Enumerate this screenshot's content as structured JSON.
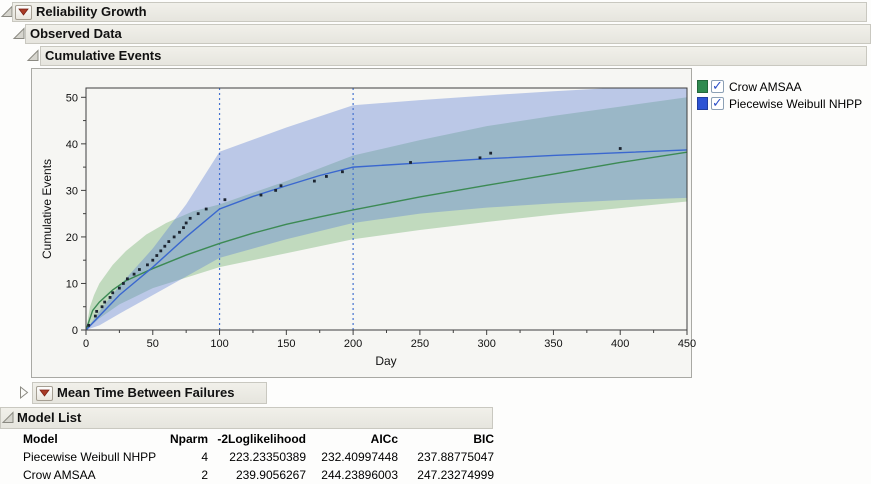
{
  "sections": {
    "reliability_growth": "Reliability Growth",
    "observed_data": "Observed Data",
    "cumulative_events": "Cumulative Events",
    "mtbf": "Mean Time Between Failures",
    "model_list": "Model List"
  },
  "legend": {
    "items": [
      {
        "label": "Crow AMSAA",
        "color": "#2f8a4f",
        "checked": true
      },
      {
        "label": "Piecewise Weibull NHPP",
        "color": "#2d53d4",
        "checked": true
      }
    ],
    "check_glyph": "✓"
  },
  "chart_data": {
    "type": "line",
    "xlabel": "Day",
    "ylabel": "Cumulative Events",
    "xlim": [
      0,
      450
    ],
    "ylim": [
      0,
      52
    ],
    "x_ticks": [
      0,
      50,
      100,
      150,
      200,
      250,
      300,
      350,
      400,
      450
    ],
    "y_ticks": [
      0,
      10,
      20,
      30,
      40,
      50
    ],
    "x_minor_step": 25,
    "y_minor_step": 5,
    "grid": false,
    "legend_position": "right-top",
    "phase_lines_x": [
      100,
      200
    ],
    "phase_line_color": "#4472d0",
    "point_color": "#1c2430",
    "observed_points": [
      [
        2,
        1
      ],
      [
        7,
        3
      ],
      [
        8,
        4
      ],
      [
        12,
        5
      ],
      [
        14,
        6
      ],
      [
        18,
        7
      ],
      [
        20,
        8
      ],
      [
        25,
        9
      ],
      [
        28,
        10
      ],
      [
        31,
        11
      ],
      [
        36,
        12
      ],
      [
        40,
        13
      ],
      [
        46,
        14
      ],
      [
        50,
        15
      ],
      [
        53,
        16
      ],
      [
        56,
        17
      ],
      [
        59,
        18
      ],
      [
        62,
        19
      ],
      [
        66,
        20
      ],
      [
        70,
        21
      ],
      [
        73,
        22
      ],
      [
        75,
        23
      ],
      [
        78,
        24
      ],
      [
        84,
        25
      ],
      [
        90,
        26
      ],
      [
        104,
        28
      ],
      [
        131,
        29
      ],
      [
        142,
        30
      ],
      [
        146,
        31
      ],
      [
        171,
        32
      ],
      [
        180,
        33
      ],
      [
        192,
        34
      ],
      [
        243,
        36
      ],
      [
        295,
        37
      ],
      [
        303,
        38
      ],
      [
        400,
        39
      ]
    ],
    "series": [
      {
        "name": "Crow AMSAA",
        "color": "#3c8a54",
        "band_color": "#6cae68",
        "band_opacity": 0.38,
        "line": [
          [
            0,
            0
          ],
          [
            5,
            4.2
          ],
          [
            10,
            6
          ],
          [
            20,
            8.6
          ],
          [
            30,
            10.6
          ],
          [
            50,
            13.2
          ],
          [
            75,
            16.1
          ],
          [
            100,
            18.6
          ],
          [
            125,
            20.8
          ],
          [
            150,
            22.7
          ],
          [
            175,
            24.3
          ],
          [
            200,
            25.8
          ],
          [
            250,
            28.6
          ],
          [
            300,
            31.1
          ],
          [
            350,
            33.5
          ],
          [
            400,
            36
          ],
          [
            450,
            38.2
          ]
        ],
        "band_upper": [
          [
            0,
            0
          ],
          [
            3,
            5
          ],
          [
            6,
            7.5
          ],
          [
            10,
            10
          ],
          [
            20,
            14
          ],
          [
            30,
            17
          ],
          [
            45,
            20.5
          ],
          [
            60,
            23
          ],
          [
            80,
            25.5
          ],
          [
            100,
            27
          ],
          [
            150,
            32
          ],
          [
            200,
            37.5
          ],
          [
            250,
            40.8
          ],
          [
            300,
            43.8
          ],
          [
            350,
            46
          ],
          [
            400,
            48
          ],
          [
            450,
            50
          ]
        ],
        "band_lower": [
          [
            0,
            0
          ],
          [
            10,
            2.5
          ],
          [
            25,
            5.5
          ],
          [
            50,
            9
          ],
          [
            100,
            13.5
          ],
          [
            150,
            16.5
          ],
          [
            200,
            19.5
          ],
          [
            250,
            21.5
          ],
          [
            300,
            23.2
          ],
          [
            350,
            24.8
          ],
          [
            400,
            26.2
          ],
          [
            450,
            27.6
          ]
        ]
      },
      {
        "name": "Piecewise Weibull NHPP",
        "color": "#3a67cf",
        "band_color": "#5b7fd4",
        "band_opacity": 0.38,
        "line": [
          [
            0,
            0
          ],
          [
            10,
            3
          ],
          [
            25,
            7.5
          ],
          [
            50,
            13.5
          ],
          [
            75,
            20
          ],
          [
            100,
            26
          ],
          [
            125,
            28.7
          ],
          [
            150,
            31
          ],
          [
            175,
            33.2
          ],
          [
            200,
            35
          ],
          [
            250,
            35.9
          ],
          [
            300,
            36.8
          ],
          [
            350,
            37.5
          ],
          [
            400,
            38.1
          ],
          [
            450,
            38.7
          ]
        ],
        "band_upper": [
          [
            0,
            0
          ],
          [
            10,
            4
          ],
          [
            25,
            9.5
          ],
          [
            50,
            17.5
          ],
          [
            75,
            27
          ],
          [
            100,
            38.3
          ],
          [
            150,
            43.5
          ],
          [
            200,
            48.3
          ],
          [
            250,
            49.4
          ],
          [
            300,
            50.4
          ],
          [
            350,
            51.3
          ],
          [
            400,
            52.1
          ],
          [
            450,
            53
          ]
        ],
        "band_lower": [
          [
            0,
            0
          ],
          [
            10,
            1
          ],
          [
            25,
            3.5
          ],
          [
            50,
            7.5
          ],
          [
            75,
            11.5
          ],
          [
            100,
            15.5
          ],
          [
            150,
            19.5
          ],
          [
            200,
            23
          ],
          [
            250,
            25
          ],
          [
            300,
            26.3
          ],
          [
            350,
            27.2
          ],
          [
            400,
            27.9
          ],
          [
            450,
            28.4
          ]
        ]
      }
    ]
  },
  "model_table": {
    "columns": [
      "Model",
      "Nparm",
      "-2Loglikelihood",
      "AICc",
      "BIC"
    ],
    "rows": [
      {
        "model": "Piecewise Weibull NHPP",
        "nparm": "4",
        "loglik": "223.23350389",
        "aicc": "232.40997448",
        "bic": "237.88775047"
      },
      {
        "model": "Crow AMSAA",
        "nparm": "2",
        "loglik": "239.9056267",
        "aicc": "244.23896003",
        "bic": "247.23274999"
      }
    ]
  }
}
